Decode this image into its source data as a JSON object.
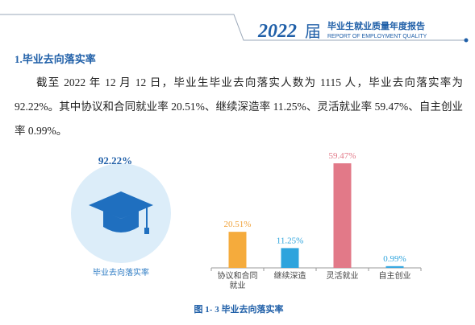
{
  "header": {
    "year": "2022",
    "suffix": "届",
    "title": "毕业生就业质量年度报告",
    "subtitle": "REPORT OF EMPLOYMENT QUALITY"
  },
  "section": {
    "heading": "1.毕业去向落实率",
    "paragraph": "截至 2022 年 12 月 12 日，毕业生毕业去向落实人数为 1115 人，毕业去向落实率为92.22%。其中协议和合同就业率 20.51%、继续深造率 11.25%、灵活就业率 59.47%、自主创业率 0.99%。"
  },
  "highlight": {
    "value_label": "92.22%",
    "label": "毕业去向落实率"
  },
  "chart_data": {
    "type": "bar",
    "categories": [
      "协议和合同就业",
      "继续深造",
      "灵活就业",
      "自主创业"
    ],
    "values": [
      20.51,
      11.25,
      59.47,
      0.99
    ],
    "value_labels": [
      "20.51%",
      "11.25%",
      "59.47%",
      "0.99%"
    ],
    "colors": [
      "#f5ab3c",
      "#2ea4dd",
      "#e27988",
      "#3aa8e0"
    ],
    "label_colors": [
      "#f0a23a",
      "#2ea4dd",
      "#e27988",
      "#2ea4dd"
    ]
  },
  "caption": "图 1- 3 毕业去向落实率"
}
